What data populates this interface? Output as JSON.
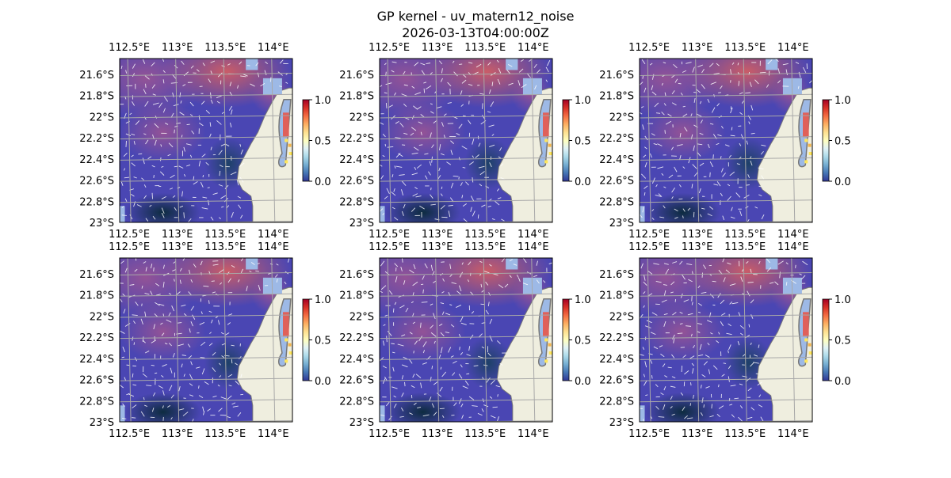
{
  "figure": {
    "title_line1": "GP kernel - uv_matern12_noise",
    "title_line2": "2026-03-13T04:00:00Z"
  },
  "colors": {
    "ocean_base": "#4a46b3",
    "land": "#efeedf",
    "coast_line": "#777777",
    "nodata_blue": "#9db9e6",
    "grid": "#a8a8a8",
    "arrow": "#ffffff",
    "colorbar": [
      "#313695",
      "#4575b4",
      "#74add1",
      "#abd9e9",
      "#e0f3f8",
      "#ffffbf",
      "#fee090",
      "#fdae61",
      "#f46d43",
      "#d73027",
      "#a50026"
    ]
  },
  "chart_data": [
    {
      "type": "heatmap",
      "panel": "top-left",
      "x_ticks": [
        "112.5°E",
        "113°E",
        "113.5°E",
        "114°E"
      ],
      "y_ticks": [
        "21.6°S",
        "21.8°S",
        "22°S",
        "22.2°S",
        "22.4°S",
        "22.6°S",
        "22.8°S",
        "23°S"
      ],
      "x_range": [
        112.4,
        114.2
      ],
      "y_range": [
        -23.0,
        -21.45
      ],
      "colorbar": {
        "range": [
          0.0,
          1.0
        ],
        "ticks": [
          "0.0",
          "0.5",
          "1.0"
        ]
      },
      "grid": true,
      "quiver": "white current vectors"
    },
    {
      "type": "heatmap",
      "panel": "top-center",
      "x_ticks": [
        "112.5°E",
        "113°E",
        "113.5°E",
        "114°E"
      ],
      "y_ticks": [
        "21.6°S",
        "21.8°S",
        "22°S",
        "22.2°S",
        "22.4°S",
        "22.6°S",
        "22.8°S",
        "23°S"
      ],
      "x_range": [
        112.4,
        114.2
      ],
      "y_range": [
        -23.0,
        -21.45
      ],
      "colorbar": {
        "range": [
          0.0,
          1.0
        ],
        "ticks": [
          "0.0",
          "0.5",
          "1.0"
        ]
      },
      "grid": true,
      "quiver": "white current vectors"
    },
    {
      "type": "heatmap",
      "panel": "top-right",
      "x_ticks": [
        "112.5°E",
        "113°E",
        "113.5°E",
        "114°E"
      ],
      "y_ticks": [
        "21.6°S",
        "21.8°S",
        "22°S",
        "22.2°S",
        "22.4°S",
        "22.6°S",
        "22.8°S",
        "23°S"
      ],
      "x_range": [
        112.4,
        114.2
      ],
      "y_range": [
        -23.0,
        -21.45
      ],
      "colorbar": {
        "range": [
          0.0,
          1.0
        ],
        "ticks": [
          "0.0",
          "0.5",
          "1.0"
        ]
      },
      "grid": true,
      "quiver": "white current vectors"
    },
    {
      "type": "heatmap",
      "panel": "bottom-left",
      "x_ticks": [
        "112.5°E",
        "113°E",
        "113.5°E",
        "114°E"
      ],
      "y_ticks": [
        "21.6°S",
        "21.8°S",
        "22°S",
        "22.2°S",
        "22.4°S",
        "22.6°S",
        "22.8°S",
        "23°S"
      ],
      "x_range": [
        112.4,
        114.2
      ],
      "y_range": [
        -23.0,
        -21.45
      ],
      "colorbar": {
        "range": [
          0.0,
          1.0
        ],
        "ticks": [
          "0.0",
          "0.5",
          "1.0"
        ]
      },
      "grid": true,
      "quiver": "white current vectors"
    },
    {
      "type": "heatmap",
      "panel": "bottom-center",
      "x_ticks": [
        "112.5°E",
        "113°E",
        "113.5°E",
        "114°E"
      ],
      "y_ticks": [
        "21.6°S",
        "21.8°S",
        "22°S",
        "22.2°S",
        "22.4°S",
        "22.6°S",
        "22.8°S",
        "23°S"
      ],
      "x_range": [
        112.4,
        114.2
      ],
      "y_range": [
        -23.0,
        -21.45
      ],
      "colorbar": {
        "range": [
          0.0,
          1.0
        ],
        "ticks": [
          "0.0",
          "0.5",
          "1.0"
        ]
      },
      "grid": true,
      "quiver": "white current vectors"
    },
    {
      "type": "heatmap",
      "panel": "bottom-right",
      "x_ticks": [
        "112.5°E",
        "113°E",
        "113.5°E",
        "114°E"
      ],
      "y_ticks": [
        "21.6°S",
        "21.8°S",
        "22°S",
        "22.2°S",
        "22.4°S",
        "22.6°S",
        "22.8°S",
        "23°S"
      ],
      "x_range": [
        112.4,
        114.2
      ],
      "y_range": [
        -23.0,
        -21.45
      ],
      "colorbar": {
        "range": [
          0.0,
          1.0
        ],
        "ticks": [
          "0.0",
          "0.5",
          "1.0"
        ]
      },
      "grid": true,
      "quiver": "white current vectors"
    }
  ]
}
